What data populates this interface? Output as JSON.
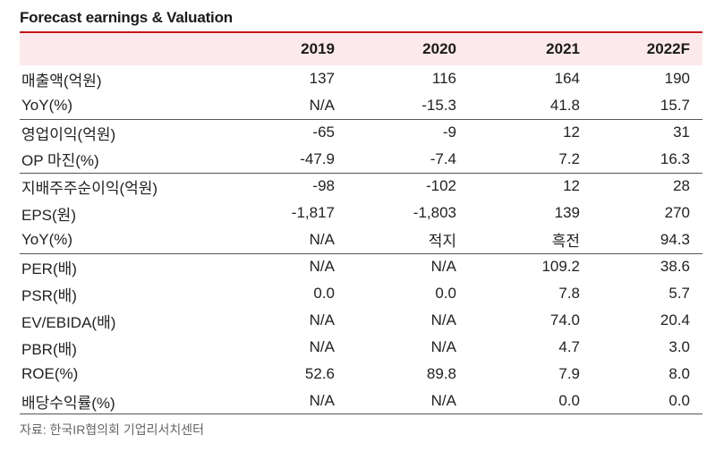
{
  "title": "Forecast earnings & Valuation",
  "columns": [
    "",
    "2019",
    "2020",
    "2021",
    "2022F"
  ],
  "rows": [
    {
      "label": "매출액(억원)",
      "values": [
        "137",
        "116",
        "164",
        "190"
      ]
    },
    {
      "label": "YoY(%)",
      "values": [
        "N/A",
        "-15.3",
        "41.8",
        "15.7"
      ]
    },
    {
      "label": "영업이익(억원)",
      "values": [
        "-65",
        "-9",
        "12",
        "31"
      ]
    },
    {
      "label": "OP 마진(%)",
      "values": [
        "-47.9",
        "-7.4",
        "7.2",
        "16.3"
      ]
    },
    {
      "label": "지배주주순이익(억원)",
      "values": [
        "-98",
        "-102",
        "12",
        "28"
      ]
    },
    {
      "label": "EPS(원)",
      "values": [
        "-1,817",
        "-1,803",
        "139",
        "270"
      ]
    },
    {
      "label": "YoY(%)",
      "values": [
        "N/A",
        "적지",
        "흑전",
        "94.3"
      ]
    },
    {
      "label": "PER(배)",
      "values": [
        "N/A",
        "N/A",
        "109.2",
        "38.6"
      ]
    },
    {
      "label": "PSR(배)",
      "values": [
        "0.0",
        "0.0",
        "7.8",
        "5.7"
      ]
    },
    {
      "label": "EV/EBIDA(배)",
      "values": [
        "N/A",
        "N/A",
        "74.0",
        "20.4"
      ]
    },
    {
      "label": "PBR(배)",
      "values": [
        "N/A",
        "N/A",
        "4.7",
        "3.0"
      ]
    },
    {
      "label": "ROE(%)",
      "values": [
        "52.6",
        "89.8",
        "7.9",
        "8.0"
      ]
    },
    {
      "label": "배당수익률(%)",
      "values": [
        "N/A",
        "N/A",
        "0.0",
        "0.0"
      ]
    }
  ],
  "source": "자료: 한국IR협의회 기업리서치센터",
  "colors": {
    "accent": "#c4161c",
    "header_bg": "#fce9ec"
  }
}
